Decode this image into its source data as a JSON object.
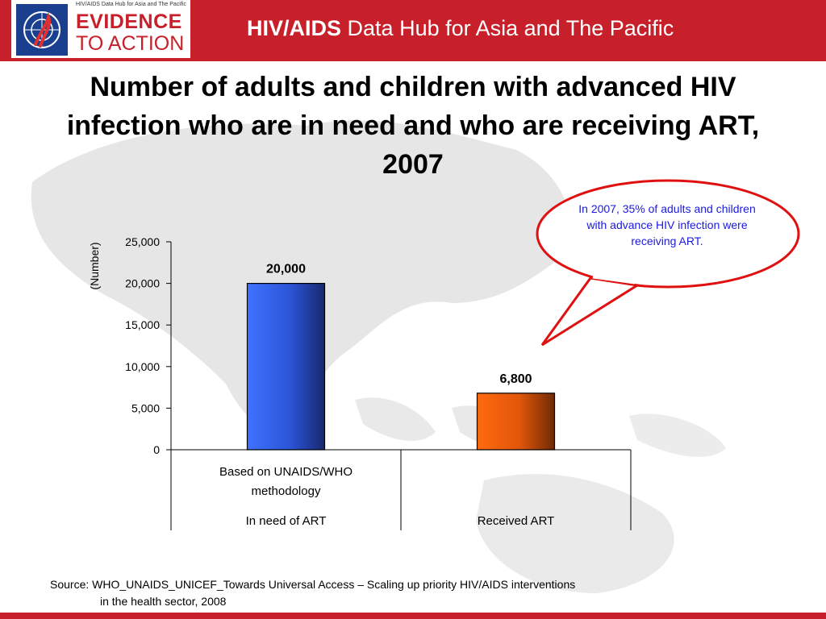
{
  "header": {
    "logo_small_text": "HIV/AIDS Data Hub for Asia and The Pacific",
    "logo_line1": "EVIDENCE",
    "logo_line2": "TO ACTION",
    "title_bold": "HIV/AIDS",
    "title_rest": " Data Hub for Asia and The Pacific"
  },
  "colors": {
    "brand_red": "#c8202a",
    "callout_text": "#1a1ae0",
    "bar_blue": "#2f5fe0",
    "bar_orange": "#e85f0a"
  },
  "slide_title": "Number of adults and children with advanced HIV infection who are in need and who are receiving ART, 2007",
  "callout": {
    "text": "In 2007, 35% of adults and children with advance HIV infection were receiving ART."
  },
  "chart_data": {
    "type": "bar",
    "ylabel": "(Number)",
    "ylim": [
      0,
      25000
    ],
    "yticks": [
      "0",
      "5,000",
      "10,000",
      "15,000",
      "20,000",
      "25,000"
    ],
    "ytick_values": [
      0,
      5000,
      10000,
      15000,
      20000,
      25000
    ],
    "categories": [
      {
        "sub_label": "Based on UNAIDS/WHO methodology",
        "group_label": "In need of ART",
        "value": 20000,
        "data_label": "20,000",
        "color": "blue"
      },
      {
        "sub_label": "",
        "group_label": "Received ART",
        "value": 6800,
        "data_label": "6,800",
        "color": "orange"
      }
    ],
    "grid": false,
    "legend": "none"
  },
  "source": {
    "line1": "Source: WHO_UNAIDS_UNICEF_Towards Universal Access – Scaling up priority HIV/AIDS interventions",
    "line2": "in the health sector, 2008"
  }
}
